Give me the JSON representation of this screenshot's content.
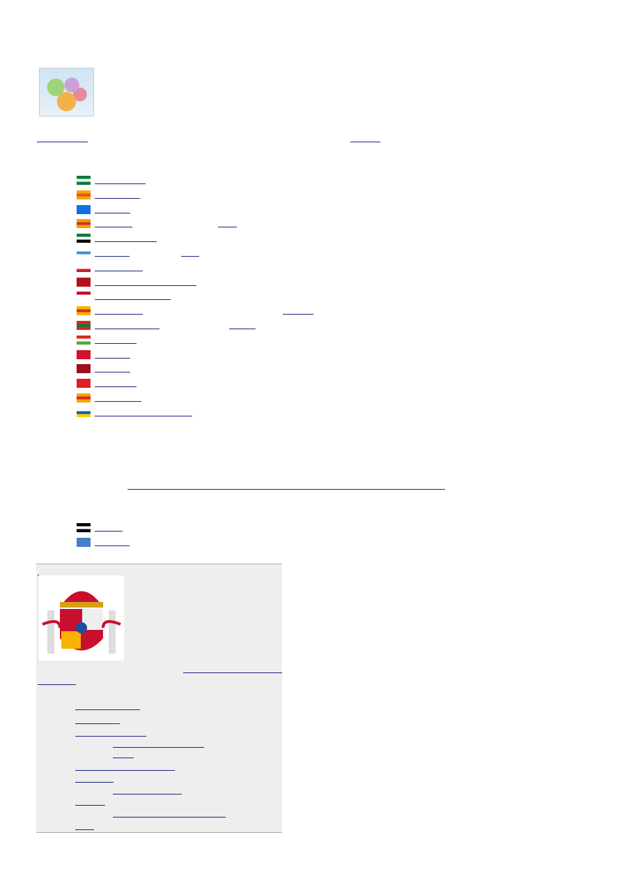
{
  "images": {
    "map": "spain-regions-map",
    "coat_of_arms": "spain-coat-of-arms"
  },
  "link_color": "#1a237e",
  "box_background": "#eeeeee",
  "flags": [
    {
      "icon": "andalucia-flag-icon",
      "colors": [
        "#0a7a3c",
        "#ffffff",
        "#0a7a3c"
      ]
    },
    {
      "icon": "aragon-flag-icon",
      "colors": [
        "#f7a400",
        "#e0551f",
        "#f7a400"
      ]
    },
    {
      "icon": "asturias-flag-icon",
      "colors": [
        "#1470e0",
        "#1470e0",
        "#1470e0"
      ]
    },
    {
      "icon": "baleares-flag-icon",
      "colors": [
        "#f6a100",
        "#c8362b",
        "#f6a100"
      ]
    },
    {
      "icon": "extremadura-flag-icon",
      "colors": [
        "#0b7a3a",
        "#ffffff",
        "#000000"
      ]
    },
    {
      "icon": "galicia-flag-icon",
      "colors": [
        "#ffffff",
        "#3b8fd1",
        "#ffffff"
      ]
    },
    {
      "icon": "cantabria-flag-icon",
      "colors": [
        "#ffffff",
        "#ffffff",
        "#d71a28"
      ]
    },
    {
      "icon": "castilla-leon-flag-icon",
      "colors": [
        "#b5121b",
        "#b5121b",
        "#b5121b"
      ]
    },
    {
      "icon": "castilla-la-mancha-flag-icon",
      "colors": [
        "#c4102f",
        "#ffffff",
        "#ffffff"
      ]
    },
    {
      "icon": "cataluna-flag-icon",
      "colors": [
        "#f6b300",
        "#d52b1e",
        "#f6b300"
      ]
    },
    {
      "icon": "pais-vasco-flag-icon",
      "colors": [
        "#d52b1e",
        "#0a7a3c",
        "#d52b1e"
      ]
    },
    {
      "icon": "la-rioja-flag-icon",
      "colors": [
        "#d52b1e",
        "#ffffff",
        "#5aa832"
      ]
    },
    {
      "icon": "madrid-flag-icon",
      "colors": [
        "#d4112e",
        "#d4112e",
        "#d4112e"
      ]
    },
    {
      "icon": "murcia-flag-icon",
      "colors": [
        "#9b1020",
        "#9b1020",
        "#9b1020"
      ]
    },
    {
      "icon": "navarra-flag-icon",
      "colors": [
        "#e41e26",
        "#e41e26",
        "#e41e26"
      ]
    },
    {
      "icon": "valencia-flag-icon",
      "colors": [
        "#f6a400",
        "#d52b1e",
        "#f6a400"
      ]
    },
    {
      "icon": "canarias-flag-icon",
      "colors": [
        "#ffffff",
        "#0a5bb0",
        "#fccf00"
      ]
    },
    {
      "icon": "ceuta-flag-icon",
      "colors": [
        "#000000",
        "#ffffff",
        "#000000"
      ]
    },
    {
      "icon": "melilla-flag-icon",
      "colors": [
        "#4a7dc8",
        "#4a7dc8",
        "#4a7dc8"
      ]
    }
  ]
}
